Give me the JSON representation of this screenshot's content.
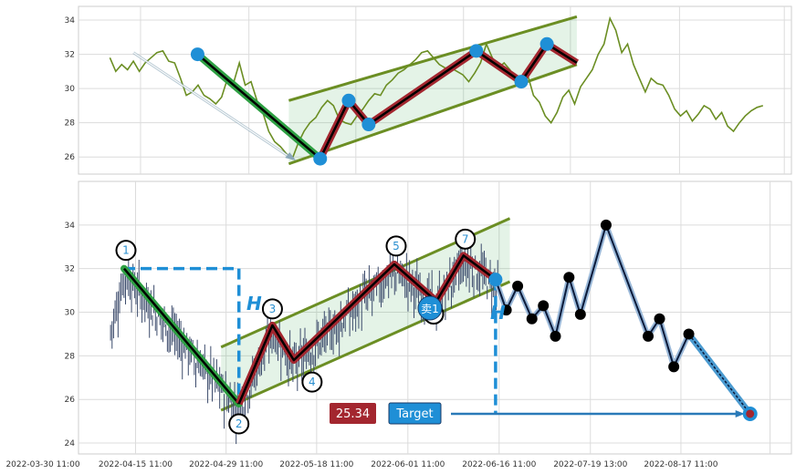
{
  "chart_data": [
    {
      "type": "line",
      "panel": "top",
      "ylim": [
        25,
        34.8
      ],
      "yticks": [
        "26",
        "28",
        "30",
        "32",
        "34"
      ],
      "series": [
        {
          "values": [
            31.8,
            31.0,
            31.4,
            31.1,
            31.6,
            31.0,
            31.5,
            31.8,
            32.1,
            32.2,
            31.6,
            31.5,
            30.6,
            29.6,
            29.8,
            30.2,
            29.6,
            29.4,
            29.1,
            29.5,
            30.6,
            30.3,
            31.5,
            30.2,
            30.4,
            29.3,
            28.6,
            27.5,
            26.9,
            26.6,
            26.2,
            25.9,
            26.8,
            27.5,
            28.0,
            28.3,
            28.9,
            29.3,
            29.0,
            28.2,
            28.0,
            27.9,
            28.4,
            28.8,
            29.3,
            29.7,
            29.6,
            30.2,
            30.5,
            30.9,
            31.1,
            31.4,
            31.7,
            32.1,
            32.2,
            31.8,
            31.4,
            31.2,
            31.2,
            31.0,
            30.8,
            30.4,
            30.9,
            31.5,
            32.6,
            31.8,
            31.2,
            31.5,
            31.1,
            30.5,
            30.2,
            30.8,
            29.6,
            29.2,
            28.4,
            28.0,
            28.6,
            29.5,
            29.9,
            29.1,
            30.1,
            30.6,
            31.1,
            32.0,
            32.6,
            34.1,
            33.4,
            32.1,
            32.6,
            31.4,
            30.6,
            29.8,
            30.6,
            30.3,
            30.2,
            29.6,
            28.8,
            28.4,
            28.7,
            28.1,
            28.5,
            29.0,
            28.8,
            28.2,
            28.6,
            27.8,
            27.5,
            28.0,
            28.4,
            28.7,
            28.9,
            29.0
          ]
        }
      ],
      "points": [
        {
          "x": 0.167,
          "y": 32.0
        },
        {
          "x": 0.339,
          "y": 25.9
        },
        {
          "x": 0.379,
          "y": 29.3
        },
        {
          "x": 0.407,
          "y": 27.9
        },
        {
          "x": 0.558,
          "y": 32.2
        },
        {
          "x": 0.621,
          "y": 30.4
        },
        {
          "x": 0.657,
          "y": 32.6
        }
      ]
    },
    {
      "type": "candlestick",
      "panel": "bottom",
      "ylim": [
        23.5,
        36.0
      ],
      "yticks": [
        "24",
        "26",
        "28",
        "30",
        "32",
        "34"
      ],
      "xticks": [
        "2022-03-30 11:00",
        "2022-04-15 11:00",
        "2022-04-29 11:00",
        "2022-05-18 11:00",
        "2022-06-01 11:00",
        "2022-06-16 11:00",
        "2022-07-19 13:00",
        "2022-08-17 11:00"
      ],
      "pattern_labels": [
        "1",
        "2",
        "3",
        "4",
        "5",
        "6",
        "7"
      ],
      "pattern_points": [
        {
          "x": 0.064,
          "y": 32.0
        },
        {
          "x": 0.225,
          "y": 25.8
        },
        {
          "x": 0.272,
          "y": 29.4
        },
        {
          "x": 0.302,
          "y": 27.8
        },
        {
          "x": 0.443,
          "y": 32.2
        },
        {
          "x": 0.502,
          "y": 30.5
        },
        {
          "x": 0.54,
          "y": 32.6
        },
        {
          "x": 0.585,
          "y": 31.5
        }
      ],
      "projection_points": [
        {
          "x": 0.585,
          "y": 31.5
        },
        {
          "x": 0.6,
          "y": 30.1
        },
        {
          "x": 0.616,
          "y": 31.2
        },
        {
          "x": 0.636,
          "y": 29.7
        },
        {
          "x": 0.652,
          "y": 30.3
        },
        {
          "x": 0.669,
          "y": 28.9
        },
        {
          "x": 0.688,
          "y": 31.6
        },
        {
          "x": 0.704,
          "y": 29.9
        },
        {
          "x": 0.74,
          "y": 34.0
        },
        {
          "x": 0.799,
          "y": 28.9
        },
        {
          "x": 0.815,
          "y": 29.7
        },
        {
          "x": 0.835,
          "y": 27.5
        },
        {
          "x": 0.856,
          "y": 29.0
        }
      ],
      "target_point": {
        "x": 0.942,
        "y": 25.34
      },
      "sell_label": "卖1",
      "height_label": "H",
      "target_value": "25.34",
      "target_label": "Target"
    }
  ]
}
